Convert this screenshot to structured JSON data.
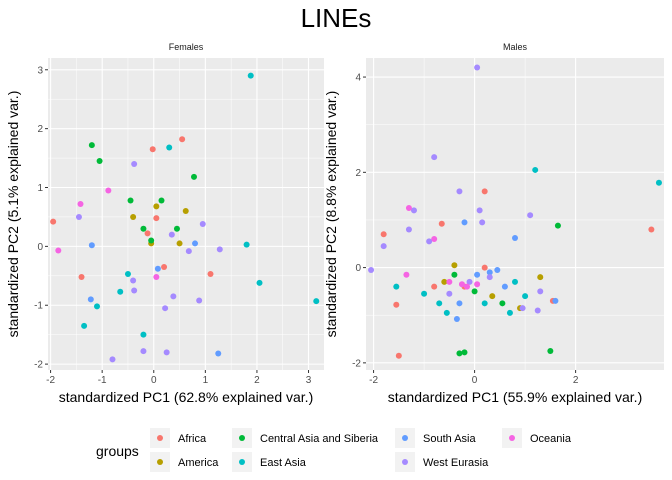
{
  "chart_data": {
    "type": "scatter",
    "title": "LINEs",
    "legend": {
      "title": "groups",
      "placement": "bottom",
      "entries": [
        {
          "name": "Africa",
          "color": "#F8766D"
        },
        {
          "name": "America",
          "color": "#B79F00"
        },
        {
          "name": "Central Asia and Siberia",
          "color": "#00BA38"
        },
        {
          "name": "East Asia",
          "color": "#00BFC4"
        },
        {
          "name": "South Asia",
          "color": "#619CFF"
        },
        {
          "name": "West Eurasia",
          "color": "#A58AFF"
        },
        {
          "name": "Oceania",
          "color": "#F564E3"
        }
      ]
    },
    "grid": true,
    "panels": [
      {
        "strip": "Females",
        "xlabel": "standardized PC1 (62.8% explained var.)",
        "ylabel": "standardized PC2 (5.1% explained var.)",
        "xlim": [
          -2.05,
          3.3
        ],
        "ylim": [
          -2.1,
          3.2
        ],
        "xticks": [
          -2,
          -1,
          0,
          1,
          2,
          3
        ],
        "yticks": [
          -2,
          -1,
          0,
          1,
          2,
          3
        ],
        "points": [
          {
            "x": -1.95,
            "y": 0.42,
            "g": "Africa"
          },
          {
            "x": -1.4,
            "y": -0.52,
            "g": "Africa"
          },
          {
            "x": -0.02,
            "y": 1.65,
            "g": "Africa"
          },
          {
            "x": 0.55,
            "y": 1.82,
            "g": "Africa"
          },
          {
            "x": 0.05,
            "y": 0.48,
            "g": "Africa"
          },
          {
            "x": 0.2,
            "y": -0.35,
            "g": "Africa"
          },
          {
            "x": 1.1,
            "y": -0.47,
            "g": "Africa"
          },
          {
            "x": -0.12,
            "y": 0.22,
            "g": "Africa"
          },
          {
            "x": 0.05,
            "y": 0.68,
            "g": "America"
          },
          {
            "x": 0.62,
            "y": 0.6,
            "g": "America"
          },
          {
            "x": -0.4,
            "y": 0.5,
            "g": "America"
          },
          {
            "x": -0.05,
            "y": 0.05,
            "g": "America"
          },
          {
            "x": 0.5,
            "y": 0.05,
            "g": "America"
          },
          {
            "x": -1.2,
            "y": 1.72,
            "g": "Central Asia and Siberia"
          },
          {
            "x": -1.05,
            "y": 1.45,
            "g": "Central Asia and Siberia"
          },
          {
            "x": 0.78,
            "y": 1.18,
            "g": "Central Asia and Siberia"
          },
          {
            "x": 0.15,
            "y": 0.78,
            "g": "Central Asia and Siberia"
          },
          {
            "x": -0.45,
            "y": 0.78,
            "g": "Central Asia and Siberia"
          },
          {
            "x": 0.45,
            "y": 0.3,
            "g": "Central Asia and Siberia"
          },
          {
            "x": -0.05,
            "y": 0.1,
            "g": "Central Asia and Siberia"
          },
          {
            "x": -0.2,
            "y": 0.3,
            "g": "Central Asia and Siberia"
          },
          {
            "x": 1.88,
            "y": 2.9,
            "g": "East Asia"
          },
          {
            "x": 0.3,
            "y": 1.68,
            "g": "East Asia"
          },
          {
            "x": -1.35,
            "y": -1.35,
            "g": "East Asia"
          },
          {
            "x": -1.1,
            "y": -1.02,
            "g": "East Asia"
          },
          {
            "x": -0.65,
            "y": -0.77,
            "g": "East Asia"
          },
          {
            "x": -0.5,
            "y": -0.47,
            "g": "East Asia"
          },
          {
            "x": -0.2,
            "y": -1.5,
            "g": "East Asia"
          },
          {
            "x": 2.05,
            "y": -0.62,
            "g": "East Asia"
          },
          {
            "x": 3.15,
            "y": -0.93,
            "g": "East Asia"
          },
          {
            "x": 1.8,
            "y": 0.03,
            "g": "East Asia"
          },
          {
            "x": -1.2,
            "y": 0.02,
            "g": "South Asia"
          },
          {
            "x": -1.22,
            "y": -0.9,
            "g": "South Asia"
          },
          {
            "x": 0.8,
            "y": 0.05,
            "g": "South Asia"
          },
          {
            "x": 1.25,
            "y": -1.82,
            "g": "South Asia"
          },
          {
            "x": 0.08,
            "y": -0.38,
            "g": "South Asia"
          },
          {
            "x": -0.38,
            "y": 1.4,
            "g": "West Eurasia"
          },
          {
            "x": -1.45,
            "y": 0.5,
            "g": "West Eurasia"
          },
          {
            "x": -0.8,
            "y": -1.92,
            "g": "West Eurasia"
          },
          {
            "x": -0.4,
            "y": -0.58,
            "g": "West Eurasia"
          },
          {
            "x": -0.38,
            "y": -0.75,
            "g": "West Eurasia"
          },
          {
            "x": -0.2,
            "y": -1.78,
            "g": "West Eurasia"
          },
          {
            "x": 0.25,
            "y": -1.8,
            "g": "West Eurasia"
          },
          {
            "x": 0.22,
            "y": -1.05,
            "g": "West Eurasia"
          },
          {
            "x": 0.38,
            "y": -0.85,
            "g": "West Eurasia"
          },
          {
            "x": 0.68,
            "y": -0.08,
            "g": "West Eurasia"
          },
          {
            "x": 0.88,
            "y": -0.92,
            "g": "West Eurasia"
          },
          {
            "x": 0.95,
            "y": 0.38,
            "g": "West Eurasia"
          },
          {
            "x": 1.28,
            "y": -0.05,
            "g": "West Eurasia"
          },
          {
            "x": 0.35,
            "y": 0.2,
            "g": "West Eurasia"
          },
          {
            "x": -1.42,
            "y": 0.72,
            "g": "Oceania"
          },
          {
            "x": -1.85,
            "y": -0.07,
            "g": "Oceania"
          },
          {
            "x": -0.88,
            "y": 0.95,
            "g": "Oceania"
          },
          {
            "x": 0.05,
            "y": -0.52,
            "g": "Oceania"
          }
        ]
      },
      {
        "strip": "Males",
        "xlabel": "standardized PC1 (55.9% explained var.)",
        "ylabel": "standardized PC2 (8.8% explained var.)",
        "xlim": [
          -2.15,
          3.75
        ],
        "ylim": [
          -2.15,
          4.4
        ],
        "xticks": [
          -2,
          0,
          2
        ],
        "yticks": [
          -2,
          0,
          2,
          4
        ],
        "points": [
          {
            "x": -1.8,
            "y": 0.7,
            "g": "Africa"
          },
          {
            "x": -1.55,
            "y": -0.78,
            "g": "Africa"
          },
          {
            "x": -1.5,
            "y": -1.85,
            "g": "Africa"
          },
          {
            "x": -0.65,
            "y": 0.92,
            "g": "Africa"
          },
          {
            "x": 0.2,
            "y": 1.6,
            "g": "Africa"
          },
          {
            "x": 0.2,
            "y": 0.0,
            "g": "Africa"
          },
          {
            "x": 3.5,
            "y": 0.8,
            "g": "Africa"
          },
          {
            "x": 1.55,
            "y": -0.7,
            "g": "Africa"
          },
          {
            "x": -0.2,
            "y": -0.4,
            "g": "Africa"
          },
          {
            "x": -0.8,
            "y": -0.4,
            "g": "Africa"
          },
          {
            "x": -0.6,
            "y": -0.3,
            "g": "America"
          },
          {
            "x": -0.4,
            "y": 0.05,
            "g": "America"
          },
          {
            "x": 0.9,
            "y": -0.85,
            "g": "America"
          },
          {
            "x": 1.3,
            "y": -0.2,
            "g": "America"
          },
          {
            "x": 0.35,
            "y": -0.6,
            "g": "America"
          },
          {
            "x": 1.65,
            "y": 0.88,
            "g": "Central Asia and Siberia"
          },
          {
            "x": 1.5,
            "y": -1.75,
            "g": "Central Asia and Siberia"
          },
          {
            "x": -0.3,
            "y": -1.8,
            "g": "Central Asia and Siberia"
          },
          {
            "x": -0.2,
            "y": -1.78,
            "g": "Central Asia and Siberia"
          },
          {
            "x": 0.55,
            "y": -0.75,
            "g": "Central Asia and Siberia"
          },
          {
            "x": 0.0,
            "y": -0.5,
            "g": "Central Asia and Siberia"
          },
          {
            "x": -0.4,
            "y": -0.15,
            "g": "Central Asia and Siberia"
          },
          {
            "x": 1.2,
            "y": 2.05,
            "g": "East Asia"
          },
          {
            "x": 3.65,
            "y": 1.78,
            "g": "East Asia"
          },
          {
            "x": -1.55,
            "y": -0.4,
            "g": "East Asia"
          },
          {
            "x": -1.0,
            "y": -0.55,
            "g": "East Asia"
          },
          {
            "x": -0.55,
            "y": -0.95,
            "g": "East Asia"
          },
          {
            "x": -0.7,
            "y": -0.75,
            "g": "East Asia"
          },
          {
            "x": 0.2,
            "y": -0.75,
            "g": "East Asia"
          },
          {
            "x": 0.7,
            "y": -0.95,
            "g": "East Asia"
          },
          {
            "x": 1.0,
            "y": -0.6,
            "g": "East Asia"
          },
          {
            "x": 0.8,
            "y": -0.3,
            "g": "East Asia"
          },
          {
            "x": -0.2,
            "y": 0.95,
            "g": "South Asia"
          },
          {
            "x": 0.8,
            "y": 0.62,
            "g": "South Asia"
          },
          {
            "x": 1.6,
            "y": -0.7,
            "g": "South Asia"
          },
          {
            "x": -0.35,
            "y": -1.08,
            "g": "South Asia"
          },
          {
            "x": -0.3,
            "y": -0.75,
            "g": "South Asia"
          },
          {
            "x": 0.05,
            "y": -0.15,
            "g": "South Asia"
          },
          {
            "x": 0.3,
            "y": -0.1,
            "g": "South Asia"
          },
          {
            "x": 0.45,
            "y": -0.05,
            "g": "South Asia"
          },
          {
            "x": 0.6,
            "y": -0.4,
            "g": "South Asia"
          },
          {
            "x": 0.05,
            "y": 4.2,
            "g": "West Eurasia"
          },
          {
            "x": -0.8,
            "y": 2.32,
            "g": "West Eurasia"
          },
          {
            "x": -1.2,
            "y": 1.2,
            "g": "West Eurasia"
          },
          {
            "x": -1.8,
            "y": 0.45,
            "g": "West Eurasia"
          },
          {
            "x": -2.05,
            "y": -0.05,
            "g": "West Eurasia"
          },
          {
            "x": -1.3,
            "y": 0.8,
            "g": "West Eurasia"
          },
          {
            "x": -0.9,
            "y": 0.55,
            "g": "West Eurasia"
          },
          {
            "x": -0.3,
            "y": 1.6,
            "g": "West Eurasia"
          },
          {
            "x": 0.1,
            "y": 1.2,
            "g": "West Eurasia"
          },
          {
            "x": 0.15,
            "y": 0.95,
            "g": "West Eurasia"
          },
          {
            "x": 1.1,
            "y": 1.1,
            "g": "West Eurasia"
          },
          {
            "x": 1.3,
            "y": -0.5,
            "g": "West Eurasia"
          },
          {
            "x": 1.25,
            "y": -0.9,
            "g": "West Eurasia"
          },
          {
            "x": 0.95,
            "y": -0.85,
            "g": "West Eurasia"
          },
          {
            "x": -0.1,
            "y": -0.3,
            "g": "West Eurasia"
          },
          {
            "x": -0.5,
            "y": -0.55,
            "g": "West Eurasia"
          },
          {
            "x": 0.3,
            "y": -0.2,
            "g": "West Eurasia"
          },
          {
            "x": -1.3,
            "y": 1.25,
            "g": "Oceania"
          },
          {
            "x": -1.35,
            "y": -0.15,
            "g": "Oceania"
          },
          {
            "x": -0.8,
            "y": 0.6,
            "g": "Oceania"
          },
          {
            "x": -0.5,
            "y": -0.3,
            "g": "Oceania"
          },
          {
            "x": -0.25,
            "y": -0.35,
            "g": "Oceania"
          },
          {
            "x": -0.15,
            "y": -0.4,
            "g": "Oceania"
          },
          {
            "x": 0.05,
            "y": -0.35,
            "g": "Oceania"
          }
        ]
      }
    ]
  }
}
